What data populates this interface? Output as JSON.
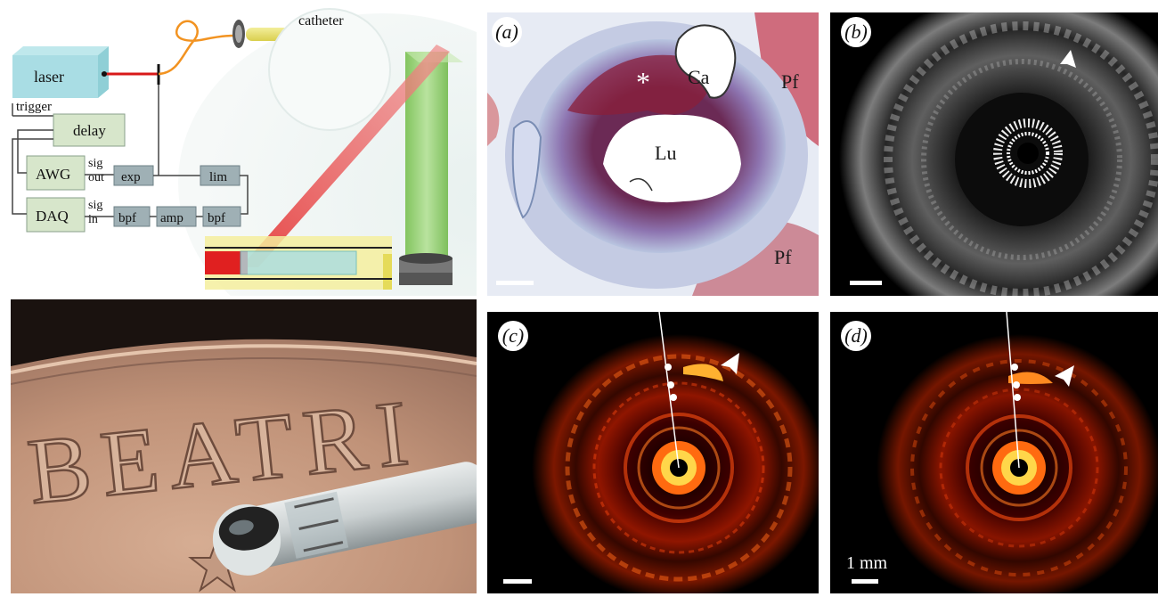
{
  "schematic": {
    "laser": "laser",
    "trigger": "trigger",
    "delay": "delay",
    "awg": "AWG",
    "daq": "DAQ",
    "sig_out_1": "sig",
    "sig_out_2": "out",
    "sig_in_1": "sig",
    "sig_in_2": "in",
    "exp": "exp",
    "lim": "lim",
    "bpf1": "bpf",
    "amp": "amp",
    "bpf2": "bpf",
    "catheter": "catheter"
  },
  "photo": {
    "coin_letters": "BEATRI"
  },
  "panels": {
    "a": {
      "letter": "a",
      "labels": {
        "ca": "Ca",
        "lu": "Lu",
        "pf_top": "Pf",
        "pf_bottom": "Pf",
        "star": "*"
      }
    },
    "b": {
      "letter": "b"
    },
    "c": {
      "letter": "c"
    },
    "d": {
      "letter": "d",
      "scale_label": "1 mm"
    }
  },
  "colors": {
    "histology_bg": "#e9edf5",
    "histology_tissue": "#7a5d9e",
    "histology_plaque": "#8a1f3a",
    "us_bg": "#000000",
    "pa_hot": "#ff5a10",
    "pa_core": "#ffe75a"
  }
}
